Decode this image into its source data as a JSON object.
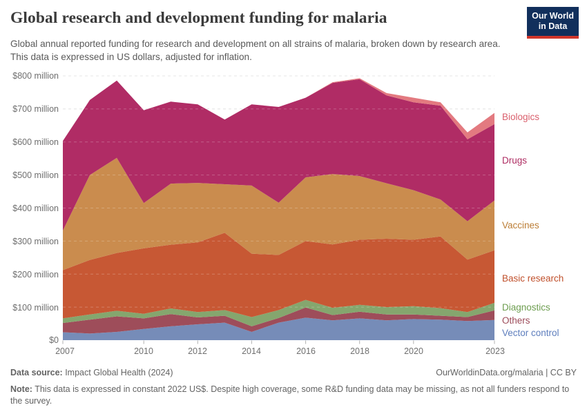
{
  "header": {
    "title": "Global research and development funding for malaria",
    "subtitle": "Global annual reported funding for research and development on all strains of malaria, broken down by research area. This data is expressed in US dollars, adjusted for inflation.",
    "logo": {
      "line1": "Our World",
      "line2": "in Data"
    }
  },
  "chart_data": {
    "type": "area",
    "stacked": true,
    "title": "Global research and development funding for malaria",
    "unit": "US$ million",
    "grid": true,
    "legend_position": "right",
    "xlim": [
      2007,
      2023
    ],
    "ylim": [
      0,
      800
    ],
    "x": [
      2007,
      2008,
      2009,
      2010,
      2011,
      2012,
      2013,
      2014,
      2015,
      2016,
      2017,
      2018,
      2019,
      2020,
      2021,
      2022,
      2023
    ],
    "x_tick_labels": [
      "2007",
      "2010",
      "2012",
      "2014",
      "2016",
      "2018",
      "2020",
      "2023"
    ],
    "x_tick_years": [
      2007,
      2010,
      2012,
      2014,
      2016,
      2018,
      2020,
      2023
    ],
    "y_tick_labels": [
      "$800 million",
      "$700 million",
      "$600 million",
      "$500 million",
      "$400 million",
      "$300 million",
      "$200 million",
      "$100 million",
      "$0"
    ],
    "y_grid_values": [
      100,
      200,
      300,
      400,
      500,
      600,
      700,
      800
    ],
    "series": [
      {
        "name": "Vector control",
        "color": "#768cb8",
        "label_color": "#5e7ebd",
        "values": [
          24,
          20,
          25,
          34,
          42,
          48,
          53,
          25,
          53,
          68,
          60,
          66,
          60,
          64,
          62,
          58,
          61
        ]
      },
      {
        "name": "Others",
        "color": "#9e4d5a",
        "label_color": "#9c4a58",
        "values": [
          28,
          42,
          47,
          32,
          37,
          21,
          21,
          17,
          14,
          31,
          16,
          20,
          18,
          14,
          12,
          12,
          29
        ]
      },
      {
        "name": "Diagnostics",
        "color": "#85a66e",
        "label_color": "#6d9d4f",
        "values": [
          14,
          16,
          17,
          14,
          17,
          16,
          17,
          28,
          24,
          23,
          22,
          21,
          22,
          25,
          23,
          15,
          23
        ]
      },
      {
        "name": "Basic research",
        "color": "#c75834",
        "label_color": "#c0512d",
        "values": [
          146,
          165,
          175,
          198,
          193,
          211,
          234,
          192,
          167,
          178,
          192,
          197,
          207,
          201,
          217,
          159,
          159
        ]
      },
      {
        "name": "Vaccines",
        "color": "#ca8c4e",
        "label_color": "#bb7d35",
        "values": [
          120,
          257,
          288,
          137,
          185,
          180,
          147,
          206,
          158,
          193,
          213,
          193,
          168,
          150,
          112,
          116,
          151
        ]
      },
      {
        "name": "Drugs",
        "color": "#b02c65",
        "label_color": "#ae2c62",
        "values": [
          271,
          227,
          234,
          281,
          248,
          238,
          196,
          246,
          290,
          241,
          276,
          293,
          266,
          266,
          284,
          248,
          231
        ]
      },
      {
        "name": "Biologics",
        "color": "#e37a80",
        "label_color": "#da5f6c",
        "values": [
          0,
          0,
          0,
          0,
          0,
          0,
          0,
          0,
          0,
          0,
          2,
          3,
          7,
          14,
          10,
          21,
          34
        ]
      }
    ]
  },
  "footer": {
    "data_source_label": "Data source:",
    "data_source_value": " Impact Global Health (2024)",
    "link_text": "OurWorldinData.org/malaria | CC BY",
    "note_label": "Note:",
    "note_value": " This data is expressed in constant 2022 US$. Despite high coverage, some R&D funding data may be missing, as not all funders respond to the survey."
  }
}
